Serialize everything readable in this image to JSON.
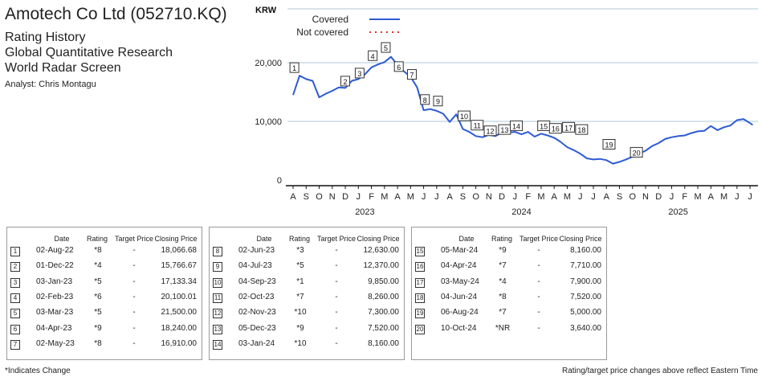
{
  "header": {
    "title": "Amotech Co Ltd (052710.KQ)",
    "lines": [
      "Rating History",
      "Global Quantitative Research",
      "World Radar Screen"
    ],
    "analyst": "Analyst: Chris Montagu"
  },
  "legend": {
    "covered": "Covered",
    "not_covered": "Not covered"
  },
  "colors": {
    "line": "#2e5bd4",
    "not_covered": "#e83030",
    "grid": "#c9dce6",
    "axis": "#111111"
  },
  "table_headers": {
    "date": "Date",
    "rating": "Rating",
    "target": "Target Price",
    "close": "Closing Price"
  },
  "tables": [
    [
      {
        "n": "1",
        "date": "02-Aug-22",
        "rating": "*8",
        "target": "-",
        "close": "18,066.68"
      },
      {
        "n": "2",
        "date": "01-Dec-22",
        "rating": "*4",
        "target": "-",
        "close": "15,766.67"
      },
      {
        "n": "3",
        "date": "03-Jan-23",
        "rating": "*5",
        "target": "-",
        "close": "17,133.34"
      },
      {
        "n": "4",
        "date": "02-Feb-23",
        "rating": "*6",
        "target": "-",
        "close": "20,100.01"
      },
      {
        "n": "5",
        "date": "03-Mar-23",
        "rating": "*5",
        "target": "-",
        "close": "21,500.00"
      },
      {
        "n": "6",
        "date": "04-Apr-23",
        "rating": "*9",
        "target": "-",
        "close": "18,240.00"
      },
      {
        "n": "7",
        "date": "02-May-23",
        "rating": "*8",
        "target": "-",
        "close": "16,910.00"
      }
    ],
    [
      {
        "n": "8",
        "date": "02-Jun-23",
        "rating": "*3",
        "target": "-",
        "close": "12,630.00"
      },
      {
        "n": "9",
        "date": "04-Jul-23",
        "rating": "*5",
        "target": "-",
        "close": "12,370.00"
      },
      {
        "n": "10",
        "date": "04-Sep-23",
        "rating": "*1",
        "target": "-",
        "close": "9,850.00"
      },
      {
        "n": "11",
        "date": "02-Oct-23",
        "rating": "*7",
        "target": "-",
        "close": "8,260.00"
      },
      {
        "n": "12",
        "date": "02-Nov-23",
        "rating": "*10",
        "target": "-",
        "close": "7,300.00"
      },
      {
        "n": "13",
        "date": "05-Dec-23",
        "rating": "*9",
        "target": "-",
        "close": "7,520.00"
      },
      {
        "n": "14",
        "date": "03-Jan-24",
        "rating": "*10",
        "target": "-",
        "close": "8,160.00"
      }
    ],
    [
      {
        "n": "15",
        "date": "05-Mar-24",
        "rating": "*9",
        "target": "-",
        "close": "8,160.00"
      },
      {
        "n": "16",
        "date": "04-Apr-24",
        "rating": "*7",
        "target": "-",
        "close": "7,710.00"
      },
      {
        "n": "17",
        "date": "03-May-24",
        "rating": "*4",
        "target": "-",
        "close": "7,900.00"
      },
      {
        "n": "18",
        "date": "04-Jun-24",
        "rating": "*8",
        "target": "-",
        "close": "7,520.00"
      },
      {
        "n": "19",
        "date": "06-Aug-24",
        "rating": "*7",
        "target": "-",
        "close": "5,000.00"
      },
      {
        "n": "20",
        "date": "10-Oct-24",
        "rating": "*NR",
        "target": "-",
        "close": "3,640.00"
      }
    ]
  ],
  "footer": {
    "left": "*Indicates Change",
    "right": "Rating/target price changes above reflect Eastern Time"
  },
  "chart_data": {
    "type": "line",
    "ylabel": "KRW",
    "ylim": [
      0,
      30000
    ],
    "yticks": [
      0,
      10000,
      20000
    ],
    "ytick_labels": [
      "0",
      "10,000",
      "20,000"
    ],
    "grid": "horizontal",
    "legend_position": "top-left",
    "month_labels": [
      "A",
      "S",
      "O",
      "N",
      "D",
      "J",
      "F",
      "M",
      "A",
      "M",
      "J",
      "J",
      "A",
      "S",
      "O",
      "N",
      "D",
      "J",
      "F",
      "M",
      "A",
      "M",
      "J",
      "J",
      "A",
      "S",
      "O",
      "N",
      "D",
      "J",
      "F",
      "M",
      "A",
      "M",
      "J",
      "J"
    ],
    "year_labels": [
      {
        "label": "2023",
        "month_index": 11
      },
      {
        "label": "2024",
        "month_index": 23
      },
      {
        "label": "2025",
        "month_index": 35
      }
    ],
    "series": [
      {
        "name": "Covered",
        "x_months": [
          0,
          0.5,
          1,
          1.5,
          2,
          2.5,
          3,
          3.5,
          4,
          4.5,
          5,
          5.5,
          6,
          6.5,
          7,
          7.5,
          8,
          8.5,
          9,
          9.5,
          10,
          10.5,
          11,
          11.5,
          12,
          12.5,
          13,
          13.5,
          14,
          14.5,
          15,
          15.5,
          16,
          16.5,
          17,
          17.5,
          18,
          18.5,
          19,
          19.5,
          20,
          20.5,
          21,
          21.5,
          22,
          22.5,
          23,
          23.5,
          24,
          24.5,
          25,
          25.5,
          26,
          26.5,
          27,
          27.5,
          28,
          28.5,
          29,
          29.5,
          30,
          30.5,
          31,
          31.5,
          32,
          32.5,
          33,
          33.5,
          34,
          34.5,
          35,
          35.2
        ],
        "values": [
          14500,
          17800,
          17200,
          16900,
          14100,
          14700,
          15200,
          15800,
          15700,
          16900,
          17200,
          18000,
          19200,
          19700,
          20100,
          21000,
          19600,
          18500,
          17600,
          15800,
          11900,
          12100,
          11800,
          11300,
          9900,
          11200,
          8700,
          8200,
          7500,
          7300,
          7700,
          7500,
          8100,
          8100,
          8200,
          7800,
          8200,
          7400,
          7900,
          7600,
          7200,
          6500,
          5600,
          5100,
          4500,
          3700,
          3500,
          3600,
          3400,
          2800,
          3100,
          3500,
          4000,
          4500,
          5000,
          5800,
          6300,
          7000,
          7300,
          7500,
          7600,
          8000,
          8300,
          8400,
          9200,
          8500,
          9000,
          9300,
          10200,
          10400,
          9700,
          9400
        ]
      }
    ],
    "rating_markers": [
      {
        "label": "1",
        "x_month": 0.1,
        "value": 18066.68
      },
      {
        "label": "2",
        "x_month": 4,
        "value": 15766.67
      },
      {
        "label": "3",
        "x_month": 5.1,
        "value": 17133.34
      },
      {
        "label": "4",
        "x_month": 6.1,
        "value": 20100.01
      },
      {
        "label": "5",
        "x_month": 7.1,
        "value": 21500
      },
      {
        "label": "6",
        "x_month": 8.1,
        "value": 18240
      },
      {
        "label": "7",
        "x_month": 9.1,
        "value": 16910
      },
      {
        "label": "8",
        "x_month": 10.1,
        "value": 12630
      },
      {
        "label": "9",
        "x_month": 11.1,
        "value": 12370
      },
      {
        "label": "10",
        "x_month": 13.1,
        "value": 9850
      },
      {
        "label": "11",
        "x_month": 14.1,
        "value": 8260
      },
      {
        "label": "12",
        "x_month": 15.1,
        "value": 7300
      },
      {
        "label": "13",
        "x_month": 16.2,
        "value": 7520
      },
      {
        "label": "14",
        "x_month": 17.1,
        "value": 8160
      },
      {
        "label": "15",
        "x_month": 19.2,
        "value": 8160
      },
      {
        "label": "16",
        "x_month": 20.1,
        "value": 7710
      },
      {
        "label": "17",
        "x_month": 21.1,
        "value": 7900
      },
      {
        "label": "18",
        "x_month": 22.1,
        "value": 7520
      },
      {
        "label": "19",
        "x_month": 24.2,
        "value": 5000
      },
      {
        "label": "20",
        "x_month": 26.3,
        "value": 3640
      }
    ]
  }
}
